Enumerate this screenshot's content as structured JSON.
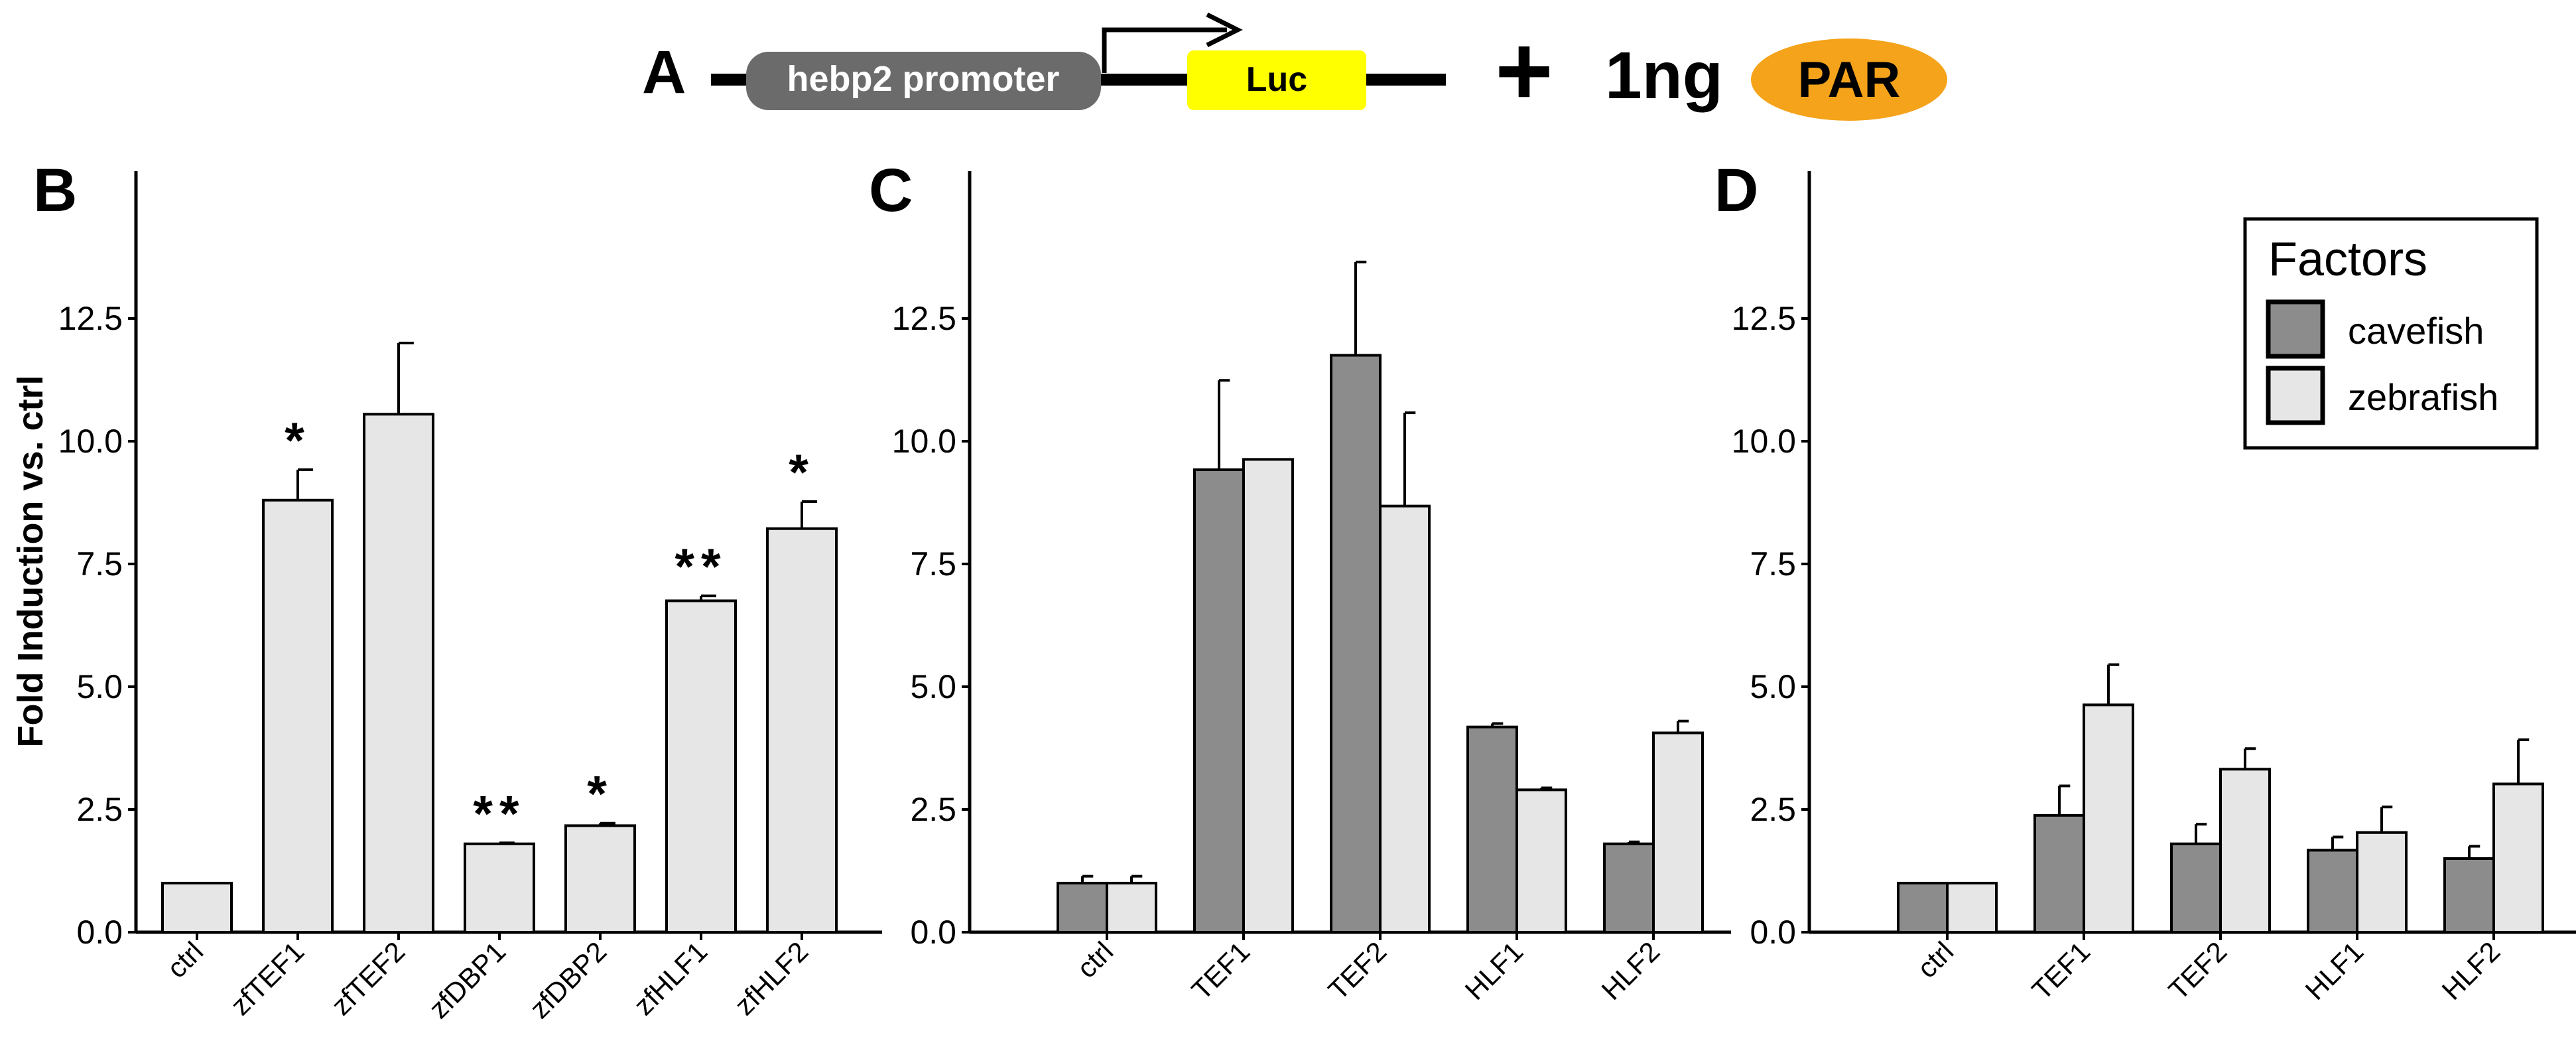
{
  "construct": {
    "panel_label": "A",
    "promoter_label": "hebp2 promoter",
    "reporter_label": "Luc",
    "plus": "+",
    "amount": "1ng",
    "factor_label": "PAR",
    "colors": {
      "promoter": "#6b6b6b",
      "reporter": "#ffff00",
      "factor": "#f5a31a"
    }
  },
  "legend": {
    "title": "Factors",
    "items": [
      {
        "label": "cavefish",
        "color": "#8c8c8c"
      },
      {
        "label": "zebrafish",
        "color": "#e6e6e6"
      }
    ]
  },
  "chart_data": [
    {
      "panel": "B",
      "type": "bar",
      "ylabel": "Fold Induction vs. ctrl",
      "xlabel": "",
      "ylim": [
        0,
        15.5
      ],
      "yticks": [
        "0.0",
        "2.5",
        "5.0",
        "7.5",
        "10.0",
        "12.5"
      ],
      "categories": [
        "ctrl",
        "zfTEF1",
        "zfTEF2",
        "zfDBP1",
        "zfDBP2",
        "zfHLF1",
        "zfHLF2"
      ],
      "series": [
        {
          "name": "zebrafish",
          "color": "#e6e6e6",
          "values": [
            1.0,
            8.8,
            10.55,
            1.8,
            2.17,
            6.75,
            8.22
          ],
          "errors": [
            0.0,
            0.62,
            1.45,
            0.02,
            0.05,
            0.1,
            0.55
          ]
        }
      ],
      "annotations": [
        "",
        "*",
        "",
        "**",
        "*",
        "**",
        "*"
      ]
    },
    {
      "panel": "C",
      "type": "bar",
      "ylabel": "",
      "xlabel": "",
      "ylim": [
        0,
        15.5
      ],
      "yticks": [
        "0.0",
        "2.5",
        "5.0",
        "7.5",
        "10.0",
        "12.5"
      ],
      "categories": [
        "ctrl",
        "TEF1",
        "TEF2",
        "HLF1",
        "HLF2"
      ],
      "series": [
        {
          "name": "cavefish",
          "color": "#8c8c8c",
          "values": [
            1.0,
            9.42,
            11.75,
            4.18,
            1.8
          ],
          "errors": [
            0.14,
            1.82,
            1.9,
            0.07,
            0.04
          ]
        },
        {
          "name": "zebrafish",
          "color": "#e6e6e6",
          "values": [
            1.0,
            9.63,
            8.68,
            2.9,
            4.06
          ],
          "errors": [
            0.14,
            0.0,
            1.9,
            0.04,
            0.24
          ]
        }
      ]
    },
    {
      "panel": "D",
      "type": "bar",
      "ylabel": "",
      "xlabel": "",
      "ylim": [
        0,
        15.5
      ],
      "yticks": [
        "0.0",
        "2.5",
        "5.0",
        "7.5",
        "10.0",
        "12.5"
      ],
      "categories": [
        "ctrl",
        "TEF1",
        "TEF2",
        "HLF1",
        "HLF2"
      ],
      "series": [
        {
          "name": "cavefish",
          "color": "#8c8c8c",
          "values": [
            1.0,
            2.38,
            1.8,
            1.67,
            1.5
          ],
          "errors": [
            0.0,
            0.6,
            0.4,
            0.27,
            0.25
          ]
        },
        {
          "name": "zebrafish",
          "color": "#e6e6e6",
          "values": [
            1.0,
            4.63,
            3.32,
            2.03,
            3.02
          ],
          "errors": [
            0.0,
            0.82,
            0.42,
            0.52,
            0.9
          ]
        }
      ]
    }
  ]
}
